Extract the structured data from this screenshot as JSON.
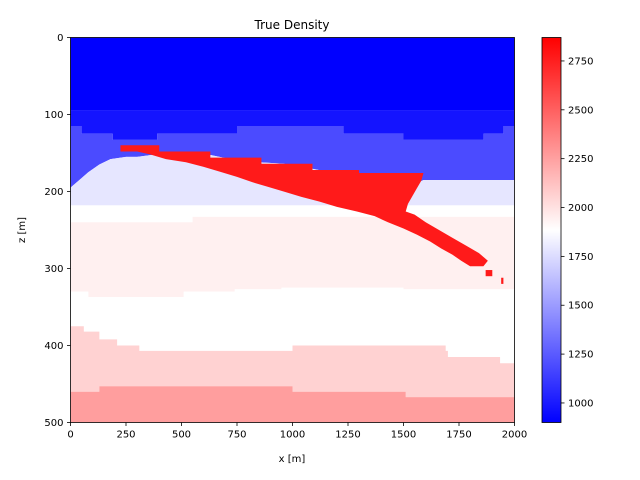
{
  "chart_data": {
    "type": "heatmap",
    "title": "True Density",
    "xlabel": "x [m]",
    "ylabel": "z [m]",
    "xlim": [
      0,
      2000
    ],
    "ylim": [
      0,
      500
    ],
    "y_inverted": true,
    "x_ticks": [
      "0",
      "250",
      "500",
      "750",
      "1000",
      "1250",
      "1500",
      "1750",
      "2000"
    ],
    "y_ticks": [
      "0",
      "100",
      "200",
      "300",
      "400",
      "500"
    ],
    "colormap": "bwr",
    "colorbar": {
      "range": [
        900,
        2870
      ],
      "ticks": [
        "1000",
        "1250",
        "1500",
        "1750",
        "2000",
        "2250",
        "2500",
        "2750"
      ]
    },
    "colors": {
      "1000": "#0000ff",
      "1100": "#1414ff",
      "1350": "#4b4bff",
      "1550": "#7a7aff",
      "1850": "#e6e6ff",
      "2000": "#ffffff",
      "2150": "#fff0f0",
      "2350": "#ffd2d2",
      "2550": "#ff9e9e",
      "2800": "#ff1a1a"
    },
    "layers": [
      {
        "density": 1000,
        "points": [
          [
            0,
            0
          ],
          [
            2000,
            0
          ],
          [
            2000,
            95
          ],
          [
            0,
            95
          ]
        ]
      },
      {
        "density": 1100,
        "points": [
          [
            0,
            95
          ],
          [
            2000,
            95
          ],
          [
            2000,
            115
          ],
          [
            1950,
            115
          ],
          [
            1950,
            125
          ],
          [
            1860,
            125
          ],
          [
            1860,
            133
          ],
          [
            1500,
            133
          ],
          [
            1500,
            125
          ],
          [
            1230,
            125
          ],
          [
            1230,
            115
          ],
          [
            750,
            115
          ],
          [
            750,
            125
          ],
          [
            390,
            125
          ],
          [
            390,
            133
          ],
          [
            190,
            133
          ],
          [
            190,
            125
          ],
          [
            50,
            125
          ],
          [
            50,
            115
          ],
          [
            0,
            115
          ]
        ]
      },
      {
        "density": 1350,
        "points": [
          [
            0,
            115
          ],
          [
            50,
            115
          ],
          [
            50,
            125
          ],
          [
            190,
            125
          ],
          [
            190,
            133
          ],
          [
            390,
            133
          ],
          [
            390,
            125
          ],
          [
            750,
            125
          ],
          [
            750,
            115
          ],
          [
            1230,
            115
          ],
          [
            1230,
            125
          ],
          [
            1500,
            125
          ],
          [
            1500,
            133
          ],
          [
            1860,
            133
          ],
          [
            1860,
            125
          ],
          [
            1950,
            125
          ],
          [
            1950,
            115
          ],
          [
            2000,
            115
          ],
          [
            2000,
            185
          ],
          [
            1590,
            185
          ],
          [
            1510,
            196
          ],
          [
            1420,
            190
          ],
          [
            1300,
            183
          ],
          [
            1190,
            176
          ],
          [
            1080,
            170
          ],
          [
            960,
            164
          ],
          [
            850,
            162
          ],
          [
            720,
            158
          ],
          [
            620,
            152
          ],
          [
            500,
            150
          ],
          [
            380,
            152
          ],
          [
            300,
            155
          ],
          [
            250,
            155
          ],
          [
            180,
            158
          ],
          [
            130,
            165
          ],
          [
            80,
            175
          ],
          [
            40,
            185
          ],
          [
            0,
            195
          ]
        ]
      },
      {
        "density": 1850,
        "points": [
          [
            0,
            195
          ],
          [
            40,
            185
          ],
          [
            80,
            175
          ],
          [
            130,
            165
          ],
          [
            180,
            158
          ],
          [
            250,
            155
          ],
          [
            300,
            155
          ],
          [
            380,
            152
          ],
          [
            500,
            150
          ],
          [
            620,
            152
          ],
          [
            720,
            158
          ],
          [
            850,
            162
          ],
          [
            960,
            164
          ],
          [
            1080,
            170
          ],
          [
            1190,
            176
          ],
          [
            1300,
            183
          ],
          [
            1420,
            190
          ],
          [
            1510,
            196
          ],
          [
            1590,
            185
          ],
          [
            2000,
            185
          ],
          [
            2000,
            218
          ],
          [
            0,
            218
          ]
        ]
      },
      {
        "density": 2000,
        "points": [
          [
            0,
            218
          ],
          [
            2000,
            218
          ],
          [
            2000,
            233
          ],
          [
            550,
            233
          ],
          [
            550,
            240
          ],
          [
            0,
            240
          ]
        ]
      },
      {
        "density": 2150,
        "points": [
          [
            0,
            240
          ],
          [
            550,
            240
          ],
          [
            550,
            233
          ],
          [
            2000,
            233
          ],
          [
            2000,
            327
          ],
          [
            1500,
            327
          ],
          [
            1500,
            325
          ],
          [
            950,
            325
          ],
          [
            950,
            327
          ],
          [
            740,
            327
          ],
          [
            740,
            330
          ],
          [
            510,
            330
          ],
          [
            510,
            337
          ],
          [
            80,
            337
          ],
          [
            80,
            330
          ],
          [
            0,
            330
          ]
        ]
      },
      {
        "density": 2000,
        "points": [
          [
            0,
            330
          ],
          [
            80,
            330
          ],
          [
            80,
            337
          ],
          [
            510,
            337
          ],
          [
            510,
            330
          ],
          [
            740,
            330
          ],
          [
            740,
            327
          ],
          [
            950,
            327
          ],
          [
            950,
            325
          ],
          [
            1500,
            325
          ],
          [
            1500,
            327
          ],
          [
            2000,
            327
          ],
          [
            2000,
            423
          ],
          [
            1935,
            423
          ],
          [
            1935,
            415
          ],
          [
            1700,
            415
          ],
          [
            1700,
            407
          ],
          [
            1690,
            407
          ],
          [
            1690,
            400
          ],
          [
            1500,
            400
          ],
          [
            1000,
            400
          ],
          [
            1000,
            407
          ],
          [
            310,
            407
          ],
          [
            310,
            400
          ],
          [
            210,
            400
          ],
          [
            210,
            392
          ],
          [
            130,
            392
          ],
          [
            130,
            382
          ],
          [
            60,
            382
          ],
          [
            60,
            375
          ],
          [
            0,
            375
          ]
        ]
      },
      {
        "density": 2350,
        "points": [
          [
            0,
            375
          ],
          [
            60,
            375
          ],
          [
            60,
            382
          ],
          [
            130,
            382
          ],
          [
            130,
            392
          ],
          [
            210,
            392
          ],
          [
            210,
            400
          ],
          [
            310,
            400
          ],
          [
            310,
            407
          ],
          [
            1000,
            407
          ],
          [
            1000,
            400
          ],
          [
            1690,
            400
          ],
          [
            1690,
            407
          ],
          [
            1700,
            407
          ],
          [
            1700,
            415
          ],
          [
            1935,
            415
          ],
          [
            1935,
            423
          ],
          [
            2000,
            423
          ],
          [
            2000,
            467
          ],
          [
            1510,
            467
          ],
          [
            1510,
            460
          ],
          [
            1000,
            460
          ],
          [
            1000,
            453
          ],
          [
            130,
            453
          ],
          [
            130,
            460
          ],
          [
            0,
            460
          ]
        ]
      },
      {
        "density": 2550,
        "points": [
          [
            0,
            460
          ],
          [
            130,
            460
          ],
          [
            130,
            453
          ],
          [
            1000,
            453
          ],
          [
            1000,
            460
          ],
          [
            1510,
            460
          ],
          [
            1510,
            467
          ],
          [
            2000,
            467
          ],
          [
            2000,
            500
          ],
          [
            0,
            500
          ]
        ]
      },
      {
        "density": 2800,
        "points": [
          [
            225,
            140
          ],
          [
            400,
            140
          ],
          [
            400,
            148
          ],
          [
            630,
            148
          ],
          [
            630,
            156
          ],
          [
            860,
            156
          ],
          [
            860,
            164
          ],
          [
            1090,
            164
          ],
          [
            1090,
            172
          ],
          [
            1300,
            172
          ],
          [
            1300,
            176
          ],
          [
            1590,
            176
          ],
          [
            1580,
            186
          ],
          [
            1560,
            196
          ],
          [
            1540,
            206
          ],
          [
            1520,
            216
          ],
          [
            1510,
            226
          ],
          [
            1550,
            230
          ],
          [
            1600,
            240
          ],
          [
            1660,
            250
          ],
          [
            1720,
            260
          ],
          [
            1780,
            270
          ],
          [
            1840,
            280
          ],
          [
            1880,
            290
          ],
          [
            1860,
            297
          ],
          [
            1800,
            297
          ],
          [
            1760,
            290
          ],
          [
            1720,
            282
          ],
          [
            1670,
            274
          ],
          [
            1620,
            265
          ],
          [
            1560,
            256
          ],
          [
            1500,
            248
          ],
          [
            1430,
            240
          ],
          [
            1370,
            232
          ],
          [
            1290,
            226
          ],
          [
            1200,
            220
          ],
          [
            1120,
            213
          ],
          [
            1040,
            207
          ],
          [
            960,
            200
          ],
          [
            890,
            194
          ],
          [
            820,
            188
          ],
          [
            750,
            181
          ],
          [
            670,
            174
          ],
          [
            600,
            168
          ],
          [
            520,
            162
          ],
          [
            430,
            158
          ],
          [
            360,
            152
          ],
          [
            300,
            148
          ],
          [
            225,
            148
          ]
        ]
      },
      {
        "density": 2800,
        "points": [
          [
            1870,
            302
          ],
          [
            1900,
            302
          ],
          [
            1900,
            310
          ],
          [
            1870,
            310
          ]
        ]
      },
      {
        "density": 2800,
        "points": [
          [
            1940,
            312
          ],
          [
            1950,
            312
          ],
          [
            1950,
            320
          ],
          [
            1940,
            320
          ]
        ]
      }
    ]
  }
}
